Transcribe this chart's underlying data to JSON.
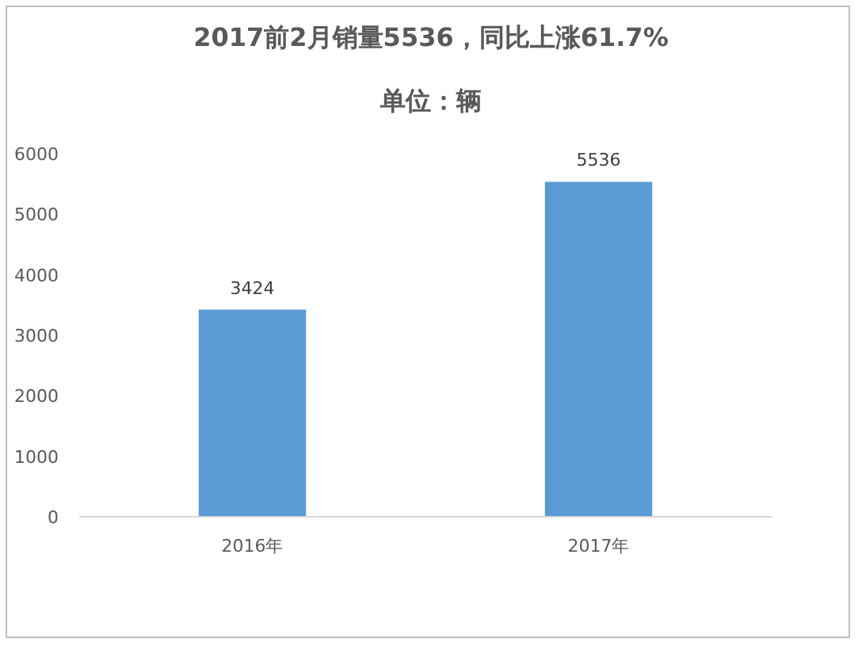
{
  "chart_data": {
    "type": "bar",
    "title": "2017前2月销量5536，同比上涨61.7%",
    "subtitle": "单位：辆",
    "categories": [
      "2016年",
      "2017年"
    ],
    "values": [
      3424,
      5536
    ],
    "color": "#5b9bd5",
    "ylim": [
      0,
      6000
    ],
    "yticks": [
      0,
      1000,
      2000,
      3000,
      4000,
      5000,
      6000
    ],
    "data_labels": true
  }
}
